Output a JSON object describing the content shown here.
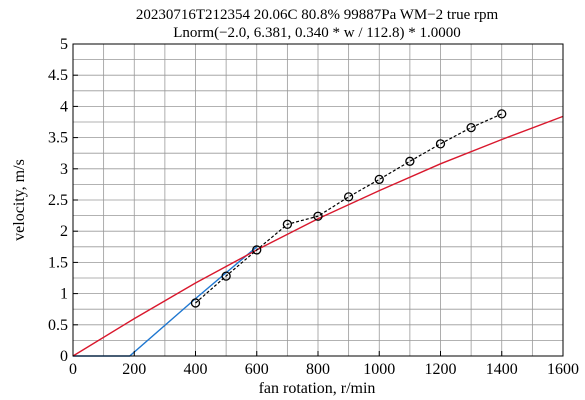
{
  "chart_data": {
    "type": "line",
    "title": [
      "20230716T212354 20.06C 80.8% 99887Pa WM−2 true rpm",
      "Lnorm(−2.0, 6.381, 0.340 * w / 112.8) * 1.0000"
    ],
    "xlabel": "fan rotation, r/min",
    "ylabel": "velocity, m/s",
    "xlim": [
      0,
      1600
    ],
    "ylim": [
      0,
      5
    ],
    "x_ticks": [
      "0",
      "200",
      "400",
      "600",
      "800",
      "1000",
      "1200",
      "1400",
      "1600"
    ],
    "y_ticks": [
      "0",
      "0.5",
      "1",
      "1.5",
      "2",
      "2.5",
      "3",
      "3.5",
      "4",
      "4.5",
      "5"
    ],
    "grid": true,
    "minor_grid": true,
    "series": [
      {
        "style": "dashed-markers",
        "color": "#000000",
        "x": [
          400,
          500,
          600,
          700,
          800,
          900,
          1000,
          1100,
          1200,
          1300,
          1400
        ],
        "y": [
          0.85,
          1.28,
          1.7,
          2.11,
          2.24,
          2.55,
          2.83,
          3.12,
          3.4,
          3.66,
          3.88
        ]
      },
      {
        "style": "solid",
        "color": "#d9182d",
        "x": [
          0,
          200,
          400,
          600,
          800,
          1000,
          1200,
          1400,
          1600
        ],
        "y": [
          0.0,
          0.6,
          1.17,
          1.7,
          2.2,
          2.65,
          3.08,
          3.47,
          3.84
        ]
      },
      {
        "style": "solid",
        "color": "#1f77d0",
        "x": [
          0,
          185,
          400,
          600
        ],
        "y": [
          0.0,
          0.0,
          0.92,
          1.75
        ]
      }
    ]
  }
}
